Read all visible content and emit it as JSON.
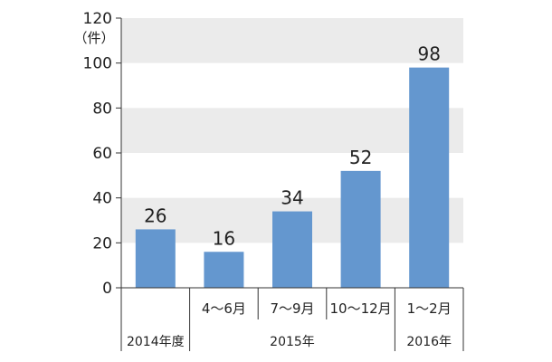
{
  "chart_data": {
    "type": "bar",
    "unit": "（件）",
    "categories": [
      "",
      "4～6月",
      "7～9月",
      "10～12月",
      "1～2月"
    ],
    "values": [
      26,
      16,
      34,
      52,
      98
    ],
    "groups": [
      {
        "label": "2014年度",
        "start": 0,
        "end": 0
      },
      {
        "label": "2015年",
        "start": 1,
        "end": 3
      },
      {
        "label": "2016年",
        "start": 4,
        "end": 4
      }
    ],
    "ylim": [
      0,
      120
    ],
    "yticks": [
      0,
      20,
      40,
      60,
      80,
      100,
      120
    ],
    "grid": "alternating bands",
    "colors": {
      "bar": "#6497cf",
      "band": "#ebebeb"
    }
  }
}
